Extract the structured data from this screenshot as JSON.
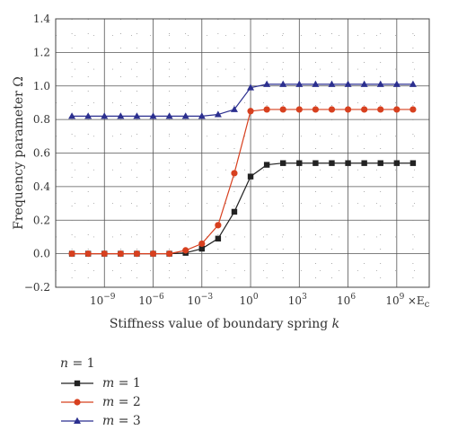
{
  "chart_data": {
    "type": "line",
    "xlabel": "Stiffness value of boundary spring k",
    "xlabel_prefix": "Stiffness value of boundary spring ",
    "xlabel_var": "k",
    "ylabel": "Frequency parameter Ω",
    "x_scale": "log",
    "xlim_exponent": [
      -12,
      11
    ],
    "x_unit_label": "×E",
    "x_unit_sub": "c",
    "x_ticks": [
      {
        "exp": -9,
        "label": "10"
      },
      {
        "exp": -6,
        "label": "10"
      },
      {
        "exp": -3,
        "label": "10"
      },
      {
        "exp": 0,
        "label": "10"
      },
      {
        "exp": 3,
        "label": "10"
      },
      {
        "exp": 6,
        "label": "10"
      },
      {
        "exp": 9,
        "label": "10"
      }
    ],
    "x_tick_exponents": [
      "−9",
      "−6",
      "−3",
      "0",
      "3",
      "6",
      "9"
    ],
    "ylim": [
      -0.2,
      1.4
    ],
    "y_ticks": [
      "−0.2",
      "0.0",
      "0.2",
      "0.4",
      "0.6",
      "0.8",
      "1.0",
      "1.2",
      "1.4"
    ],
    "y_tick_values": [
      -0.2,
      0.0,
      0.2,
      0.4,
      0.6,
      0.8,
      1.0,
      1.2,
      1.4
    ],
    "grid": true,
    "legend_placement": "below",
    "legend_title": "n = 1",
    "legend_title_var": "n",
    "legend_title_rest": " = 1",
    "x_exponents": [
      -11,
      -10,
      -9,
      -8,
      -7,
      -6,
      -5,
      -4,
      -3,
      -2,
      -1,
      0,
      1,
      2,
      3,
      4,
      5,
      6,
      7,
      8,
      9,
      10
    ],
    "series": [
      {
        "name": "m = 1",
        "name_var": "m",
        "name_rest": " = 1",
        "color": "#222222",
        "marker": "square",
        "values": [
          0.0,
          0.0,
          0.0,
          0.0,
          0.0,
          0.0,
          0.0,
          0.005,
          0.03,
          0.09,
          0.25,
          0.46,
          0.53,
          0.54,
          0.54,
          0.54,
          0.54,
          0.54,
          0.54,
          0.54,
          0.54,
          0.54
        ]
      },
      {
        "name": "m = 2",
        "name_var": "m",
        "name_rest": " = 2",
        "color": "#d7401f",
        "marker": "circle",
        "values": [
          0.0,
          0.0,
          0.0,
          0.0,
          0.0,
          0.0,
          0.0,
          0.02,
          0.06,
          0.17,
          0.48,
          0.85,
          0.86,
          0.86,
          0.86,
          0.86,
          0.86,
          0.86,
          0.86,
          0.86,
          0.86,
          0.86
        ]
      },
      {
        "name": "m = 3",
        "name_var": "m",
        "name_rest": " = 3",
        "color": "#2b2f8f",
        "marker": "triangle",
        "values": [
          0.82,
          0.82,
          0.82,
          0.82,
          0.82,
          0.82,
          0.82,
          0.82,
          0.82,
          0.83,
          0.86,
          0.99,
          1.01,
          1.01,
          1.01,
          1.01,
          1.01,
          1.01,
          1.01,
          1.01,
          1.01,
          1.01
        ]
      }
    ]
  }
}
